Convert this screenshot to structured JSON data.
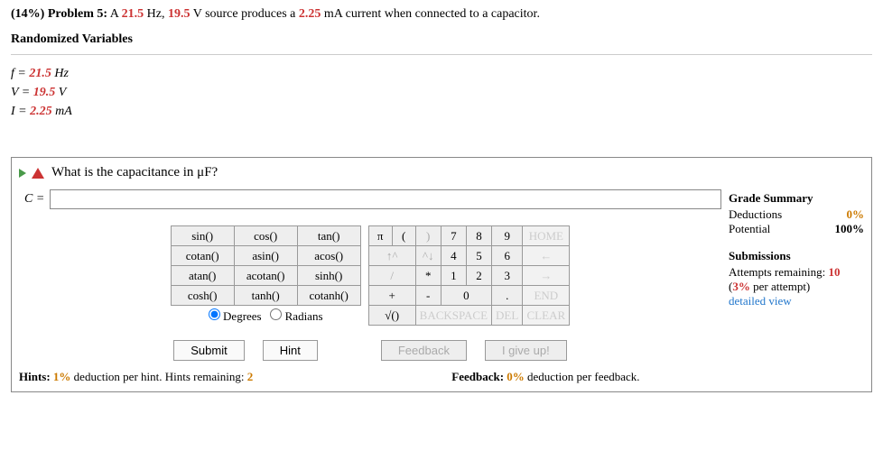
{
  "problem": {
    "percent": "(14%)",
    "label": "Problem 5:",
    "text_before_f": "A ",
    "f_val": "21.5",
    "f_unit": " Hz, ",
    "v_val": "19.5",
    "v_unit": " V source produces a ",
    "i_val": "2.25",
    "i_unit": " mA current when connected to a capacitor."
  },
  "randomized": {
    "title": "Randomized Variables",
    "f_label": "f = ",
    "f_val": "21.5",
    "f_unit": " Hz",
    "v_label": "V = ",
    "v_val": "19.5",
    "v_unit": " V",
    "i_label": "I = ",
    "i_val": "2.25",
    "i_unit": " mA"
  },
  "question": "What is the capacitance in μF?",
  "answer": {
    "label": "C = ",
    "value": ""
  },
  "funcs": {
    "r1": [
      "sin()",
      "cos()",
      "tan()"
    ],
    "r2": [
      "cotan()",
      "asin()",
      "acos()"
    ],
    "r3": [
      "atan()",
      "acotan()",
      "sinh()"
    ],
    "r4": [
      "cosh()",
      "tanh()",
      "cotanh()"
    ]
  },
  "mode": {
    "degrees": "Degrees",
    "radians": "Radians"
  },
  "keys": {
    "pi": "π",
    "lp": "(",
    "rp": ")",
    "k7": "7",
    "k8": "8",
    "k9": "9",
    "home": "HOME",
    "up": "↑^",
    "down": "^↓",
    "k4": "4",
    "k5": "5",
    "k6": "6",
    "left": "←",
    "slash": "/",
    "star": "*",
    "k1": "1",
    "k2": "2",
    "k3": "3",
    "right": "→",
    "plus": "+",
    "minus": "-",
    "k0": "0",
    "dot": ".",
    "end": "END",
    "sqrt": "√()",
    "bksp": "BACKSPACE",
    "del": "DEL",
    "clear": "CLEAR"
  },
  "buttons": {
    "submit": "Submit",
    "hint": "Hint",
    "feedback": "Feedback",
    "giveup": "I give up!"
  },
  "hints": {
    "prefix": "Hints: ",
    "pct": "1%",
    "mid": " deduction per hint. Hints remaining: ",
    "rem": "2"
  },
  "feedback_line": {
    "prefix": "Feedback: ",
    "pct": "0%",
    "suffix": " deduction per feedback."
  },
  "grade": {
    "title": "Grade Summary",
    "ded_label": "Deductions",
    "ded_val": "0%",
    "pot_label": "Potential",
    "pot_val": "100%"
  },
  "subs": {
    "title": "Submissions",
    "rem_label": "Attempts remaining: ",
    "rem_val": "10",
    "per_prefix": "(",
    "per_pct": "3%",
    "per_suffix": " per attempt)",
    "detailed": "detailed view"
  }
}
